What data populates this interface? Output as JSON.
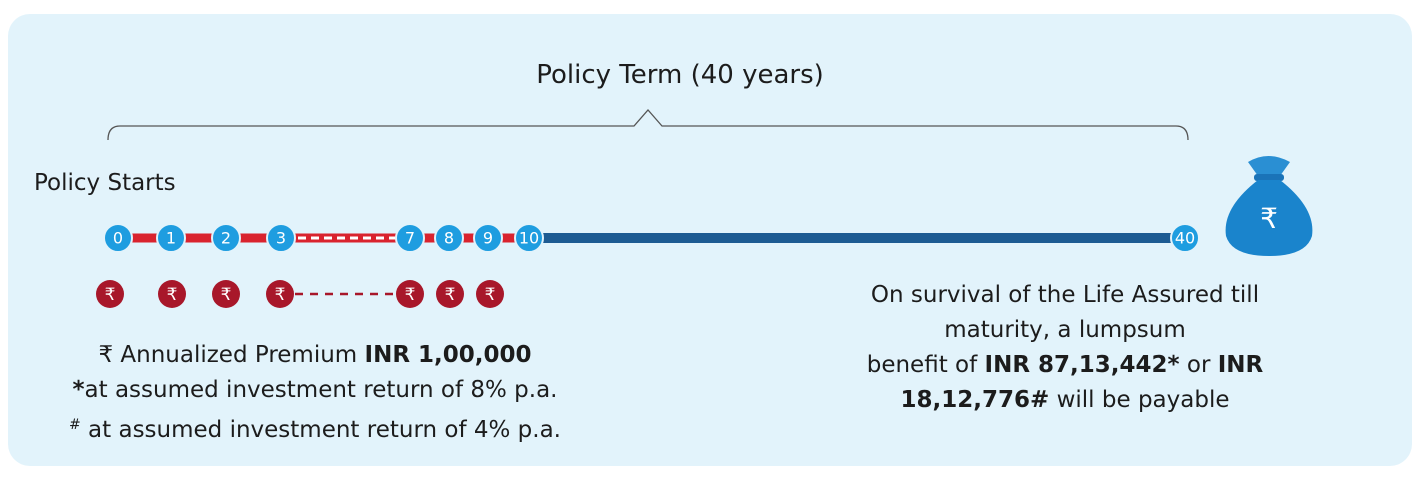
{
  "title": "Policy Term (40 years)",
  "start_label": "Policy Starts",
  "timeline_years": [
    "0",
    "1",
    "2",
    "3",
    "7",
    "8",
    "9",
    "10",
    "40"
  ],
  "currency_symbol": "₹",
  "premium_coins": 7,
  "left_text": [
    [
      {
        "text": "₹ Annualized Premium "
      },
      {
        "text": "INR 1,00,000",
        "bold": true
      }
    ],
    [
      {
        "text": "*",
        "bold": true
      },
      {
        "text": "at assumed investment return of 8% p.a."
      }
    ],
    [
      {
        "text": "#",
        "sup": true
      },
      {
        "text": " at assumed investment return of 4% p.a."
      }
    ]
  ],
  "right_text": [
    [
      {
        "text": "On survival of the Life Assured till"
      }
    ],
    [
      {
        "text": "maturity, a lumpsum"
      }
    ],
    [
      {
        "text": "benefit of "
      },
      {
        "text": "INR 87,13,442*",
        "bold": true
      },
      {
        "text": " or "
      },
      {
        "text": "INR",
        "bold": true
      }
    ],
    [
      {
        "text": "18,12,776#",
        "bold": true
      },
      {
        "text": " will be payable"
      }
    ]
  ]
}
